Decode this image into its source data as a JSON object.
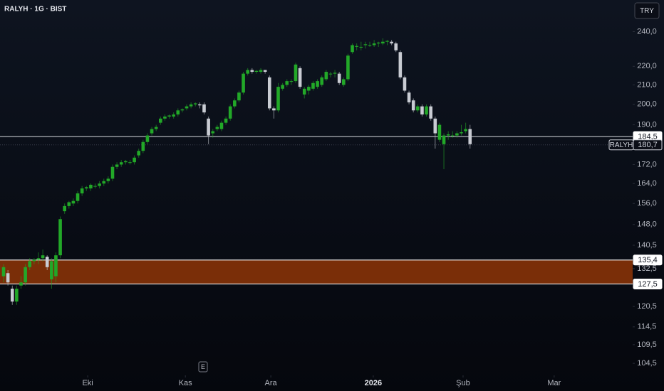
{
  "chart_data": {
    "type": "candlestick",
    "title": "RALYH · 1G · BIST",
    "currency": "TRY",
    "event_label": "E",
    "log": true,
    "up_color": "#22a828",
    "down_color": "#c9ccd3",
    "ylim": [
      101.4,
      259.8
    ],
    "yticks": [
      {
        "value": 240,
        "label": "240,0"
      },
      {
        "value": 220,
        "label": "220,0"
      },
      {
        "value": 210,
        "label": "210,0"
      },
      {
        "value": 200,
        "label": "200,0"
      },
      {
        "value": 190,
        "label": "190,0"
      },
      {
        "value": 172,
        "label": "172,0"
      },
      {
        "value": 164,
        "label": "164,0"
      },
      {
        "value": 156,
        "label": "156,0"
      },
      {
        "value": 148,
        "label": "148,0"
      },
      {
        "value": 140.5,
        "label": "140,5"
      },
      {
        "value": 132.5,
        "label": "132,5"
      },
      {
        "value": 120.5,
        "label": "120,5"
      },
      {
        "value": 114.5,
        "label": "114,5"
      },
      {
        "value": 109.5,
        "label": "109,5"
      },
      {
        "value": 104.5,
        "label": "104,5"
      }
    ],
    "xlim": [
      -0.82,
      144.3
    ],
    "xticks": [
      {
        "value": 19.3,
        "label": "Eki"
      },
      {
        "value": 41.7,
        "label": "Kas"
      },
      {
        "value": 61.3,
        "label": "Ara"
      },
      {
        "value": 84.8,
        "label": "2026"
      },
      {
        "value": 105.4,
        "label": "Şub"
      },
      {
        "value": 126.3,
        "label": "Mar"
      }
    ],
    "price_lines": [
      {
        "value": 184.5,
        "label": "184,5"
      }
    ],
    "last_price": {
      "name": "RALYH",
      "value": 180.7,
      "label": "180,7"
    },
    "zone": {
      "color": "#7a2e08",
      "high": {
        "value": 135.4,
        "label": "135,4"
      },
      "low": {
        "value": 127.5,
        "label": "127,5"
      }
    },
    "ohlc": [
      [
        130,
        134,
        128,
        133
      ],
      [
        131,
        132,
        127,
        128
      ],
      [
        126,
        127,
        121,
        122
      ],
      [
        122,
        127,
        121,
        126
      ],
      [
        127,
        130,
        126,
        128
      ],
      [
        128,
        134,
        127,
        133
      ],
      [
        133,
        136,
        132,
        135
      ],
      [
        135,
        136,
        134,
        135.5
      ],
      [
        135.5,
        138,
        134,
        136
      ],
      [
        136,
        139,
        135,
        137
      ],
      [
        136.5,
        137,
        132,
        133
      ],
      [
        129,
        136,
        126,
        135
      ],
      [
        130,
        138,
        128,
        137
      ],
      [
        137,
        151,
        136,
        150
      ],
      [
        153,
        156,
        152,
        155
      ],
      [
        155,
        157,
        154,
        156.5
      ],
      [
        156,
        158,
        155,
        157
      ],
      [
        157,
        161,
        156,
        160
      ],
      [
        160,
        163,
        159,
        162
      ],
      [
        162,
        163,
        161,
        162.5
      ],
      [
        162,
        164,
        161,
        163.5
      ],
      [
        163,
        164,
        162,
        163
      ],
      [
        163,
        165,
        162,
        164
      ],
      [
        164,
        166,
        163,
        165
      ],
      [
        165,
        167,
        164,
        166
      ],
      [
        166,
        172,
        165,
        171
      ],
      [
        171,
        173,
        170,
        172
      ],
      [
        172,
        174,
        171,
        173
      ],
      [
        173,
        174,
        172,
        173.5
      ],
      [
        173,
        174,
        172,
        173
      ],
      [
        173,
        176,
        172,
        175
      ],
      [
        176,
        179,
        175,
        178
      ],
      [
        178,
        183,
        177,
        182
      ],
      [
        182,
        186,
        181,
        185
      ],
      [
        186,
        189,
        185,
        188
      ],
      [
        188,
        190,
        187,
        189
      ],
      [
        191,
        194,
        190,
        193
      ],
      [
        193,
        195,
        192,
        194
      ],
      [
        194,
        195,
        193,
        194.5
      ],
      [
        194,
        196,
        193,
        195
      ],
      [
        195,
        198,
        194,
        197
      ],
      [
        197,
        198,
        196,
        197.5
      ],
      [
        198,
        200,
        197,
        199
      ],
      [
        199,
        201,
        198,
        200
      ],
      [
        200,
        201,
        199,
        200.5
      ],
      [
        200,
        201,
        198,
        199.5
      ],
      [
        200,
        201,
        195,
        196
      ],
      [
        193,
        194,
        181,
        185
      ],
      [
        186,
        188,
        184,
        187
      ],
      [
        188,
        190,
        187,
        189
      ],
      [
        188,
        192,
        187,
        191
      ],
      [
        191,
        194,
        190,
        193
      ],
      [
        193,
        200,
        192,
        199
      ],
      [
        199,
        203,
        198,
        202
      ],
      [
        202,
        207,
        201,
        206
      ],
      [
        206,
        217,
        205,
        216
      ],
      [
        216,
        219,
        215,
        218
      ],
      [
        218,
        219,
        216,
        217
      ],
      [
        217,
        218,
        216,
        217.5
      ],
      [
        217,
        219,
        216,
        218
      ],
      [
        218,
        218,
        216,
        217
      ],
      [
        214,
        215,
        197,
        198
      ],
      [
        198,
        199,
        193,
        197
      ],
      [
        197,
        211,
        196,
        209
      ],
      [
        208,
        211,
        207,
        210
      ],
      [
        210,
        213,
        209,
        212
      ],
      [
        212,
        213,
        210,
        212
      ],
      [
        212,
        222,
        211,
        221
      ],
      [
        219,
        220,
        208,
        209
      ],
      [
        205,
        209,
        203,
        208
      ],
      [
        207,
        210,
        205,
        209
      ],
      [
        208,
        212,
        207,
        211
      ],
      [
        209,
        213,
        208,
        212
      ],
      [
        210,
        215,
        209,
        214
      ],
      [
        213,
        218,
        212,
        217
      ],
      [
        216,
        217,
        214,
        216
      ],
      [
        216,
        218,
        214,
        216.5
      ],
      [
        216,
        217,
        210,
        211
      ],
      [
        210,
        214,
        209,
        213
      ],
      [
        213,
        227,
        212,
        226
      ],
      [
        228,
        233,
        227,
        232
      ],
      [
        231,
        233,
        229,
        231.5
      ],
      [
        231,
        234,
        229,
        231
      ],
      [
        232,
        234,
        230,
        232.5
      ],
      [
        232,
        234,
        231,
        232
      ],
      [
        232,
        235,
        231,
        233
      ],
      [
        233,
        234,
        231,
        233.5
      ],
      [
        233,
        236,
        232,
        234
      ],
      [
        234,
        235,
        232,
        234.5
      ],
      [
        234,
        235,
        232,
        233
      ],
      [
        233,
        234,
        228,
        229
      ],
      [
        228,
        229,
        213,
        214
      ],
      [
        214,
        215,
        206,
        207
      ],
      [
        206,
        207,
        200,
        201
      ],
      [
        202,
        203,
        196,
        197
      ],
      [
        197,
        200,
        196,
        199
      ],
      [
        199,
        200,
        194,
        195
      ],
      [
        195,
        200,
        194,
        199
      ],
      [
        199,
        200,
        192,
        193
      ],
      [
        193,
        194,
        179,
        186
      ],
      [
        183,
        191,
        182,
        190
      ],
      [
        181,
        186,
        170,
        185
      ],
      [
        185,
        187,
        183,
        185.5
      ],
      [
        185,
        187,
        184,
        185
      ],
      [
        185,
        187,
        184,
        186
      ],
      [
        186,
        190,
        185,
        186.5
      ],
      [
        187,
        191,
        186,
        188
      ],
      [
        188,
        190,
        179,
        181
      ]
    ]
  }
}
